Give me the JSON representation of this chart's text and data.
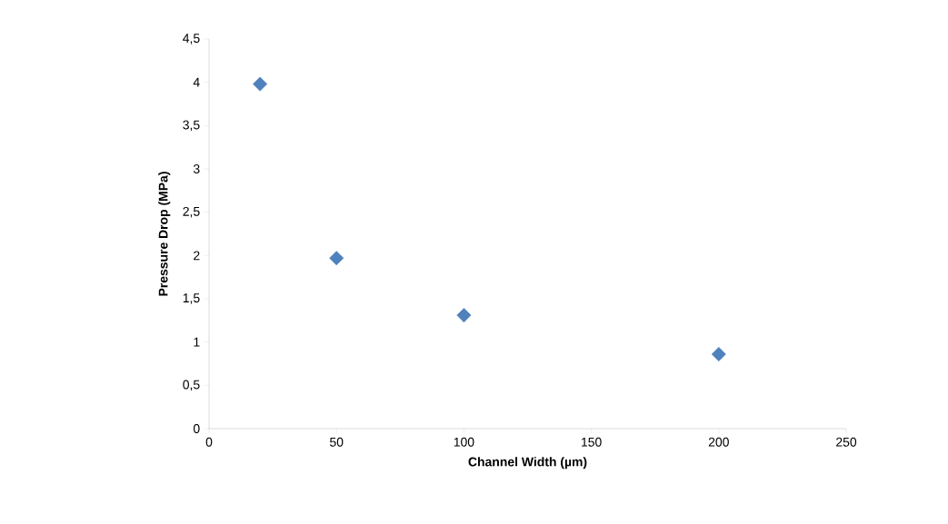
{
  "chart_data": {
    "type": "scatter",
    "xlabel": "Channel Width (µm)",
    "ylabel": "Pressure Drop (MPa)",
    "x": [
      20,
      50,
      100,
      200
    ],
    "series": [
      {
        "color": "#4f81bd",
        "values": [
          3.98,
          1.97,
          1.31,
          0.86
        ]
      }
    ],
    "xlim": [
      0,
      250
    ],
    "xticks": [
      0,
      50,
      100,
      150,
      200,
      250
    ],
    "ylim": [
      0,
      4.5
    ],
    "yticks": [
      0,
      {
        "value": 0.5,
        "label": "0,5"
      },
      1,
      {
        "value": 1.5,
        "label": "1,5"
      },
      2,
      {
        "value": 2.5,
        "label": "2,5"
      },
      3,
      {
        "value": 3.5,
        "label": "3,5"
      },
      4,
      {
        "value": 4.5,
        "label": "4,5"
      }
    ],
    "marker": "diamond"
  }
}
